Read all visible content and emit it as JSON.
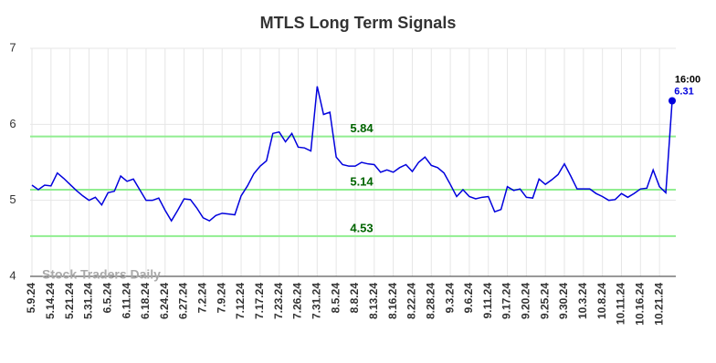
{
  "chart_data": {
    "type": "line",
    "title": "MTLS Long Term Signals",
    "categories": [
      "5.9.24",
      null,
      null,
      "5.14.24",
      null,
      null,
      "5.21.24",
      null,
      null,
      "5.31.24",
      null,
      null,
      "6.5.24",
      null,
      null,
      "6.11.24",
      null,
      null,
      "6.18.24",
      null,
      null,
      "6.24.24",
      null,
      null,
      "6.27.24",
      null,
      null,
      "7.2.24",
      null,
      null,
      "7.9.24",
      null,
      null,
      "7.12.24",
      null,
      null,
      "7.17.24",
      null,
      null,
      "7.23.24",
      null,
      null,
      "7.26.24",
      null,
      null,
      "7.31.24",
      null,
      null,
      "8.5.24",
      null,
      null,
      "8.8.24",
      null,
      null,
      "8.13.24",
      null,
      null,
      "8.16.24",
      null,
      null,
      "8.22.24",
      null,
      null,
      "8.28.24",
      null,
      null,
      "9.3.24",
      null,
      null,
      "9.6.24",
      null,
      null,
      "9.11.24",
      null,
      null,
      "9.17.24",
      null,
      null,
      "9.20.24",
      null,
      null,
      "9.25.24",
      null,
      null,
      "9.30.24",
      null,
      null,
      "10.3.24",
      null,
      null,
      "10.8.24",
      null,
      null,
      "10.11.24",
      null,
      null,
      "10.16.24",
      null,
      null,
      "10.21.24",
      null,
      null
    ],
    "values": [
      5.2,
      5.14,
      5.2,
      5.19,
      5.36,
      5.29,
      5.21,
      5.13,
      5.06,
      5.0,
      5.04,
      4.94,
      5.1,
      5.12,
      5.32,
      5.25,
      5.28,
      5.14,
      5.0,
      5.0,
      5.03,
      4.87,
      4.73,
      4.87,
      5.02,
      5.01,
      4.9,
      4.77,
      4.73,
      4.8,
      4.83,
      4.82,
      4.81,
      5.06,
      5.19,
      5.35,
      5.45,
      5.52,
      5.88,
      5.9,
      5.77,
      5.88,
      5.7,
      5.69,
      5.65,
      6.5,
      6.13,
      6.16,
      5.57,
      5.47,
      5.45,
      5.45,
      5.5,
      5.48,
      5.47,
      5.37,
      5.4,
      5.37,
      5.43,
      5.47,
      5.38,
      5.5,
      5.57,
      5.46,
      5.43,
      5.36,
      5.21,
      5.05,
      5.14,
      5.05,
      5.02,
      5.04,
      5.05,
      4.85,
      4.88,
      5.18,
      5.13,
      5.15,
      5.04,
      5.03,
      5.28,
      5.21,
      5.27,
      5.34,
      5.48,
      5.32,
      5.15,
      5.15,
      5.15,
      5.09,
      5.05,
      5.0,
      5.01,
      5.09,
      5.04,
      5.09,
      5.15,
      5.16,
      5.4,
      5.18,
      5.1,
      6.31
    ],
    "color": "#0000dd",
    "ylim": [
      4,
      7
    ],
    "yticks": [
      4,
      5,
      6,
      7
    ],
    "grid": true,
    "hlines": [
      5.84,
      5.14,
      4.53
    ],
    "hline_color": "#90ee90",
    "hline_label_color": "#006400",
    "last_time": "16:00",
    "watermark": "Stock Traders Daily"
  }
}
